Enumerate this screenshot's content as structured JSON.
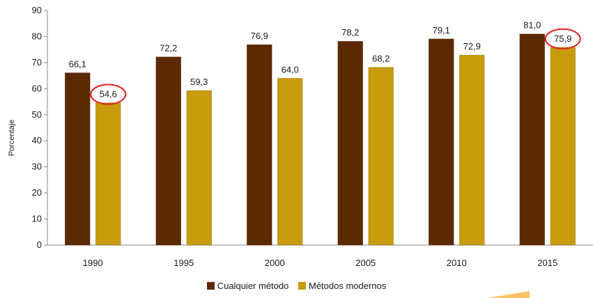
{
  "colors": {
    "series1": "#5c2a00",
    "series2": "#c89b0c",
    "highlight": "#e02020",
    "axis": "#888888"
  },
  "chart_data": {
    "type": "bar",
    "title": "",
    "xlabel": "",
    "ylabel": "Porcentaje",
    "ylim": [
      0,
      90
    ],
    "yticks": [
      "0",
      "10",
      "20",
      "30",
      "40",
      "50",
      "60",
      "70",
      "80",
      "90"
    ],
    "grid": false,
    "legend_position": "bottom",
    "categories": [
      "1990",
      "1995",
      "2000",
      "2005",
      "2010",
      "2015"
    ],
    "series": [
      {
        "name": "Cualquier método",
        "values": [
          66.1,
          72.2,
          76.9,
          78.2,
          79.1,
          81.0
        ],
        "labels": [
          "66,1",
          "72,2",
          "76,9",
          "78,2",
          "79,1",
          "81,0"
        ]
      },
      {
        "name": "Métodos modernos",
        "values": [
          54.6,
          59.3,
          64.0,
          68.2,
          72.9,
          75.9
        ],
        "labels": [
          "54,6",
          "59,3",
          "64,0",
          "68,2",
          "72,9",
          "75,9"
        ]
      }
    ],
    "highlighted": [
      {
        "series": 1,
        "category": 0
      },
      {
        "series": 1,
        "category": 5
      }
    ]
  }
}
